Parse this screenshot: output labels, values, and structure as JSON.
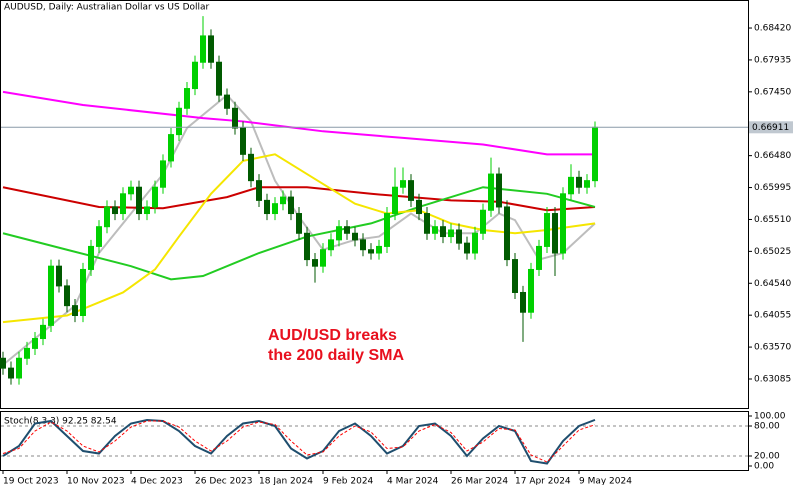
{
  "chart_data": {
    "type": "candlestick",
    "title": "AUDUSD, Daily:  Australian Dollar vs US Dollar",
    "annotation": [
      "AUD/USD breaks",
      "the 200 daily SMA"
    ],
    "xlim": [
      -0.75,
      186.25
    ],
    "xticks": [
      {
        "value": 0,
        "label": "19 Oct 2023"
      },
      {
        "value": 16,
        "label": "10 Nov 2023"
      },
      {
        "value": 32,
        "label": "4 Dec 2023"
      },
      {
        "value": 48,
        "label": "26 Dec 2023"
      },
      {
        "value": 64,
        "label": "18 Jan 2024"
      },
      {
        "value": 80,
        "label": "9 Feb 2024"
      },
      {
        "value": 96,
        "label": "4 Mar 2024"
      },
      {
        "value": 112,
        "label": "26 Mar 2024"
      },
      {
        "value": 128,
        "label": "17 Apr 2024"
      },
      {
        "value": 144,
        "label": "9 May 2024"
      }
    ],
    "ylim": [
      0.62644,
      0.68846
    ],
    "yticks": [
      {
        "value": 0.6842,
        "label": "0.68420"
      },
      {
        "value": 0.67935,
        "label": "0.67935"
      },
      {
        "value": 0.6745,
        "label": "0.67450"
      },
      {
        "value": 0.6648,
        "label": "0.66480"
      },
      {
        "value": 0.65995,
        "label": "0.65995"
      },
      {
        "value": 0.6551,
        "label": "0.65510"
      },
      {
        "value": 0.65025,
        "label": "0.65025"
      },
      {
        "value": 0.6454,
        "label": "0.64540"
      },
      {
        "value": 0.64055,
        "label": "0.64055"
      },
      {
        "value": 0.6357,
        "label": "0.63570"
      },
      {
        "value": 0.63085,
        "label": "0.63085"
      }
    ],
    "current_price": 0.66911,
    "up_color": "#00d000",
    "down_color": "#005a00",
    "x": [
      0,
      2,
      4,
      6,
      8,
      10,
      12,
      14,
      16,
      18,
      20,
      22,
      24,
      26,
      28,
      30,
      32,
      34,
      36,
      38,
      40,
      42,
      44,
      46,
      48,
      50,
      52,
      54,
      56,
      58,
      60,
      62,
      64,
      66,
      68,
      70,
      72,
      74,
      76,
      78,
      80,
      82,
      84,
      86,
      88,
      90,
      92,
      94,
      96,
      98,
      100,
      102,
      104,
      106,
      108,
      110,
      112,
      114,
      116,
      118,
      120,
      122,
      124,
      126,
      128,
      130,
      132,
      134,
      136,
      138,
      140,
      142,
      144,
      146,
      148
    ],
    "open": [
      0.634,
      0.6325,
      0.631,
      0.634,
      0.6355,
      0.637,
      0.639,
      0.648,
      0.645,
      0.642,
      0.6405,
      0.6475,
      0.651,
      0.654,
      0.657,
      0.656,
      0.659,
      0.66,
      0.656,
      0.657,
      0.66,
      0.664,
      0.668,
      0.672,
      0.675,
      0.679,
      0.683,
      0.679,
      0.674,
      0.672,
      0.669,
      0.665,
      0.661,
      0.658,
      0.656,
      0.6575,
      0.6585,
      0.656,
      0.653,
      0.649,
      0.648,
      0.6505,
      0.652,
      0.654,
      0.653,
      0.652,
      0.6505,
      0.65,
      0.651,
      0.656,
      0.66,
      0.661,
      0.658,
      0.656,
      0.653,
      0.654,
      0.6525,
      0.6535,
      0.6515,
      0.65,
      0.653,
      0.6565,
      0.662,
      0.657,
      0.649,
      0.644,
      0.641,
      0.6475,
      0.651,
      0.656,
      0.65,
      0.659,
      0.6615,
      0.66,
      0.661
    ],
    "high": [
      0.635,
      0.6335,
      0.635,
      0.6365,
      0.638,
      0.64,
      0.649,
      0.649,
      0.646,
      0.643,
      0.6485,
      0.652,
      0.655,
      0.658,
      0.658,
      0.66,
      0.661,
      0.661,
      0.658,
      0.661,
      0.665,
      0.669,
      0.673,
      0.676,
      0.68,
      0.686,
      0.684,
      0.68,
      0.675,
      0.673,
      0.67,
      0.666,
      0.662,
      0.659,
      0.6585,
      0.6595,
      0.6595,
      0.657,
      0.654,
      0.65,
      0.6515,
      0.653,
      0.655,
      0.655,
      0.654,
      0.653,
      0.6515,
      0.652,
      0.657,
      0.663,
      0.663,
      0.662,
      0.659,
      0.657,
      0.655,
      0.655,
      0.6545,
      0.6545,
      0.6525,
      0.654,
      0.6575,
      0.6645,
      0.663,
      0.658,
      0.65,
      0.645,
      0.6485,
      0.652,
      0.657,
      0.657,
      0.66,
      0.6635,
      0.6625,
      0.662,
      0.67
    ],
    "low": [
      0.6315,
      0.63,
      0.63,
      0.633,
      0.6345,
      0.636,
      0.638,
      0.644,
      0.641,
      0.6395,
      0.6395,
      0.6465,
      0.65,
      0.653,
      0.655,
      0.655,
      0.658,
      0.655,
      0.655,
      0.656,
      0.659,
      0.663,
      0.667,
      0.671,
      0.674,
      0.678,
      0.678,
      0.673,
      0.671,
      0.668,
      0.664,
      0.66,
      0.657,
      0.655,
      0.655,
      0.6565,
      0.655,
      0.652,
      0.648,
      0.6455,
      0.647,
      0.6495,
      0.651,
      0.652,
      0.651,
      0.6495,
      0.649,
      0.649,
      0.65,
      0.655,
      0.659,
      0.657,
      0.655,
      0.652,
      0.652,
      0.6515,
      0.6515,
      0.6505,
      0.649,
      0.649,
      0.652,
      0.6555,
      0.656,
      0.648,
      0.643,
      0.6365,
      0.64,
      0.6465,
      0.65,
      0.6465,
      0.649,
      0.658,
      0.659,
      0.659,
      0.66
    ],
    "close": [
      0.6325,
      0.631,
      0.634,
      0.6355,
      0.637,
      0.639,
      0.648,
      0.645,
      0.642,
      0.6405,
      0.6475,
      0.651,
      0.654,
      0.657,
      0.656,
      0.659,
      0.66,
      0.656,
      0.657,
      0.66,
      0.664,
      0.668,
      0.672,
      0.675,
      0.679,
      0.683,
      0.679,
      0.674,
      0.672,
      0.669,
      0.665,
      0.661,
      0.658,
      0.656,
      0.6575,
      0.6585,
      0.656,
      0.653,
      0.649,
      0.648,
      0.6505,
      0.652,
      0.654,
      0.653,
      0.652,
      0.6505,
      0.65,
      0.651,
      0.656,
      0.66,
      0.661,
      0.658,
      0.656,
      0.653,
      0.654,
      0.6525,
      0.6535,
      0.6515,
      0.65,
      0.653,
      0.6565,
      0.662,
      0.657,
      0.649,
      0.644,
      0.641,
      0.6475,
      0.651,
      0.656,
      0.65,
      0.659,
      0.6615,
      0.66,
      0.661,
      0.6691
    ],
    "series": [
      {
        "color": "#bdbdbd",
        "x": [
          0,
          12,
          18,
          24,
          32,
          40,
          46,
          56,
          62,
          68,
          74,
          80,
          88,
          94,
          102,
          110,
          118,
          124,
          128,
          134,
          140,
          148
        ],
        "values": [
          0.633,
          0.639,
          0.642,
          0.65,
          0.656,
          0.662,
          0.669,
          0.674,
          0.67,
          0.661,
          0.6555,
          0.6505,
          0.652,
          0.6525,
          0.656,
          0.653,
          0.653,
          0.656,
          0.655,
          0.649,
          0.65,
          0.6545
        ]
      },
      {
        "color": "#ff00ff",
        "x": [
          0,
          20,
          50,
          60,
          80,
          100,
          120,
          136,
          148
        ],
        "values": [
          0.6745,
          0.6725,
          0.6705,
          0.67,
          0.6685,
          0.6675,
          0.6665,
          0.665,
          0.665
        ]
      },
      {
        "color": "#cc0000",
        "x": [
          0,
          24,
          40,
          56,
          64,
          76,
          92,
          112,
          124,
          136,
          148
        ],
        "values": [
          0.66,
          0.657,
          0.6568,
          0.6585,
          0.66,
          0.66,
          0.659,
          0.658,
          0.6578,
          0.6565,
          0.657
        ]
      },
      {
        "color": "#22cc22",
        "x": [
          0,
          16,
          32,
          42,
          50,
          64,
          76,
          92,
          104,
          120,
          136,
          148
        ],
        "values": [
          0.653,
          0.6505,
          0.648,
          0.646,
          0.6465,
          0.65,
          0.6525,
          0.6545,
          0.657,
          0.66,
          0.659,
          0.657
        ]
      },
      {
        "color": "#f5e600",
        "x": [
          0,
          16,
          30,
          38,
          44,
          52,
          60,
          68,
          76,
          88,
          96,
          104,
          112,
          120,
          128,
          136,
          148
        ],
        "values": [
          0.6395,
          0.6405,
          0.644,
          0.6475,
          0.6525,
          0.659,
          0.664,
          0.665,
          0.662,
          0.6575,
          0.656,
          0.6565,
          0.6545,
          0.6535,
          0.653,
          0.6535,
          0.6545
        ]
      }
    ],
    "stoch": {
      "title": "Stoch(8,3,3) 92.25 82.54",
      "ylim": [
        -8,
        108
      ],
      "yticks": [
        {
          "value": 100,
          "label": "100.00"
        },
        {
          "value": 80,
          "label": "80.00"
        },
        {
          "value": 20,
          "label": "20.00"
        },
        {
          "value": 0,
          "label": "0.00"
        }
      ],
      "x": [
        0,
        4,
        8,
        12,
        16,
        20,
        24,
        28,
        32,
        36,
        40,
        44,
        48,
        52,
        56,
        60,
        64,
        68,
        72,
        76,
        80,
        84,
        88,
        92,
        96,
        100,
        104,
        108,
        112,
        116,
        120,
        124,
        128,
        132,
        136,
        140,
        144,
        148
      ],
      "series": [
        {
          "color": "#1f4e6e",
          "values": [
            20,
            40,
            85,
            90,
            60,
            30,
            25,
            60,
            85,
            92,
            90,
            70,
            40,
            25,
            60,
            85,
            90,
            80,
            35,
            15,
            30,
            70,
            85,
            60,
            25,
            40,
            80,
            85,
            60,
            20,
            55,
            80,
            70,
            10,
            5,
            50,
            80,
            92.25
          ]
        },
        {
          "color": "#ff0000",
          "values": [
            25,
            35,
            70,
            88,
            70,
            40,
            28,
            50,
            78,
            90,
            90,
            78,
            50,
            30,
            50,
            78,
            88,
            83,
            50,
            22,
            28,
            60,
            80,
            68,
            35,
            38,
            70,
            83,
            67,
            30,
            48,
            75,
            72,
            22,
            8,
            40,
            72,
            82.54
          ]
        }
      ]
    }
  }
}
